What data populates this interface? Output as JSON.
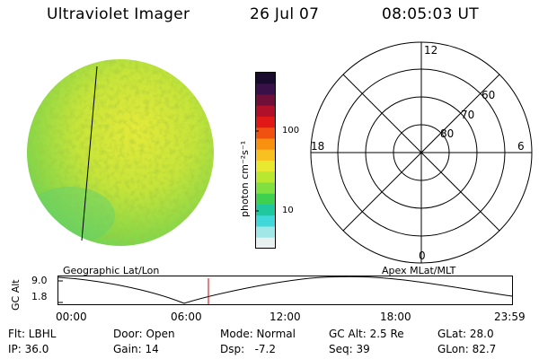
{
  "header": {
    "instrument": "Ultraviolet Imager",
    "date": "26 Jul 07",
    "time": "08:05:03 UT"
  },
  "image_panel": {
    "label": "Geographic Lat/Lon"
  },
  "colorbar": {
    "unit_label": "photon cm⁻²s⁻¹",
    "ticks": [
      "100",
      "10"
    ],
    "colors": [
      "#1a0a2e",
      "#3a1048",
      "#70103a",
      "#b0102a",
      "#e01818",
      "#f05010",
      "#f89010",
      "#f8c020",
      "#e8e830",
      "#b8e830",
      "#80e040",
      "#40d050",
      "#20c8a0",
      "#40d8d8",
      "#a0e8e8",
      "#e8f0f0"
    ]
  },
  "polar_panel": {
    "label": "Apex MLat/MLT",
    "mlt_labels": [
      "12",
      "18",
      "6",
      "0"
    ],
    "mlat_labels": [
      "60",
      "70",
      "80"
    ]
  },
  "timeline": {
    "ylabel": "GC Alt",
    "yticks": [
      "9.0",
      "1.8"
    ],
    "xticks": [
      "00:00",
      "06:00",
      "12:00",
      "18:00",
      "23:59"
    ],
    "current_time_color": "#cc0000"
  },
  "info": {
    "flt": "Flt: LBHL",
    "ip": "IP: 36.0",
    "door": "Door: Open",
    "gain": "Gain: 14",
    "mode": "Mode: Normal",
    "dsp": "Dsp:   -7.2",
    "gc_alt": "GC Alt: 2.5 Re",
    "seq": "Seq: 39",
    "glat": "GLat: 28.0",
    "glon": "GLon: 82.7"
  }
}
